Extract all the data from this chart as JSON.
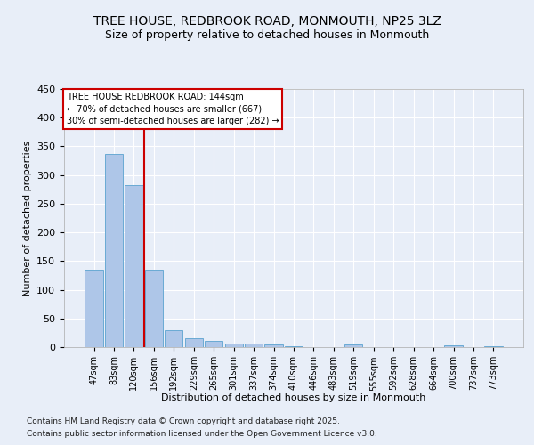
{
  "title": "TREE HOUSE, REDBROOK ROAD, MONMOUTH, NP25 3LZ",
  "subtitle": "Size of property relative to detached houses in Monmouth",
  "xlabel": "Distribution of detached houses by size in Monmouth",
  "ylabel": "Number of detached properties",
  "categories": [
    "47sqm",
    "83sqm",
    "120sqm",
    "156sqm",
    "192sqm",
    "229sqm",
    "265sqm",
    "301sqm",
    "337sqm",
    "374sqm",
    "410sqm",
    "446sqm",
    "483sqm",
    "519sqm",
    "555sqm",
    "592sqm",
    "628sqm",
    "664sqm",
    "700sqm",
    "737sqm",
    "773sqm"
  ],
  "values": [
    135,
    336,
    282,
    135,
    29,
    15,
    11,
    6,
    6,
    5,
    1,
    0,
    0,
    4,
    0,
    0,
    0,
    0,
    3,
    0,
    2
  ],
  "bar_color": "#aec6e8",
  "bar_edgecolor": "#6aaad4",
  "redline_x": 2.5,
  "ylim": [
    0,
    450
  ],
  "yticks": [
    0,
    50,
    100,
    150,
    200,
    250,
    300,
    350,
    400,
    450
  ],
  "annotation_text": "TREE HOUSE REDBROOK ROAD: 144sqm\n← 70% of detached houses are smaller (667)\n30% of semi-detached houses are larger (282) →",
  "annotation_box_color": "#cc0000",
  "footer_line1": "Contains HM Land Registry data © Crown copyright and database right 2025.",
  "footer_line2": "Contains public sector information licensed under the Open Government Licence v3.0.",
  "background_color": "#e8eef8",
  "plot_bg_color": "#e8eef8",
  "grid_color": "#ffffff",
  "title_fontsize": 10,
  "subtitle_fontsize": 9
}
